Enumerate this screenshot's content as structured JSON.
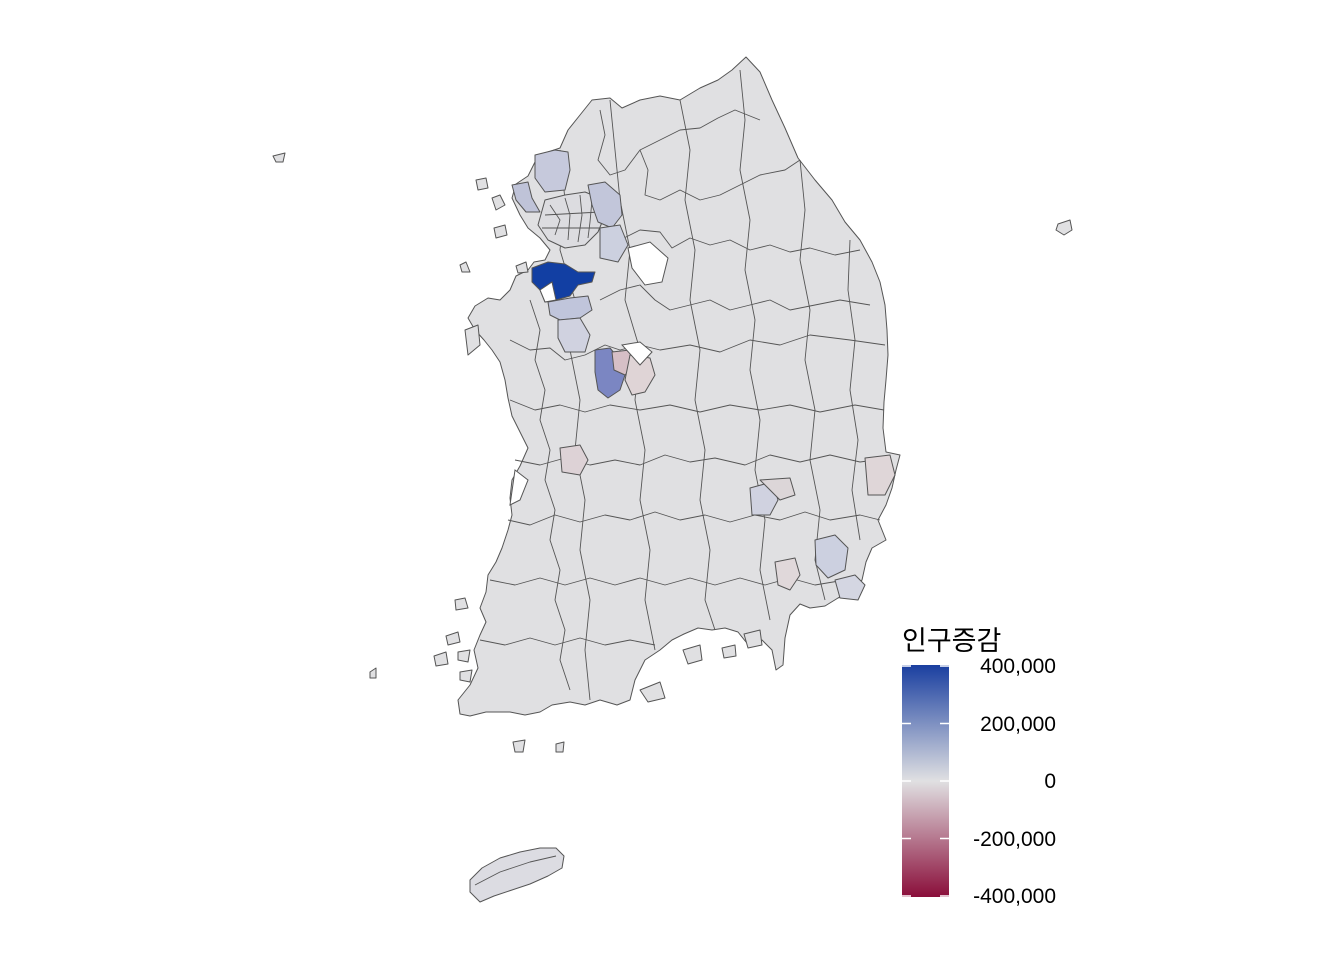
{
  "legend": {
    "title": "인구증감",
    "ticks": [
      "400,000",
      "200,000",
      "0",
      "-200,000",
      "-400,000"
    ],
    "tick_values": [
      400000,
      200000,
      0,
      -200000,
      -400000
    ],
    "min": -400000,
    "max": 400000
  },
  "colors": {
    "high": "#1a3fa0",
    "mid": "#e0e0e2",
    "low": "#8a0e3a",
    "border": "#555555",
    "background": "#ffffff"
  },
  "highlighted_regions": [
    {
      "id": "sejong-area",
      "value": 400000
    },
    {
      "id": "cheongju-area",
      "value": 220000
    },
    {
      "id": "gimpo-paju-area",
      "value": 90000
    },
    {
      "id": "gyeonggi-northeast",
      "value": 80000
    },
    {
      "id": "pyeongtaek-area",
      "value": 90000
    },
    {
      "id": "daejeon-area",
      "value": -80000
    },
    {
      "id": "gimhae-yangsan-area",
      "value": 60000
    },
    {
      "id": "gumi-area",
      "value": 40000
    }
  ]
}
